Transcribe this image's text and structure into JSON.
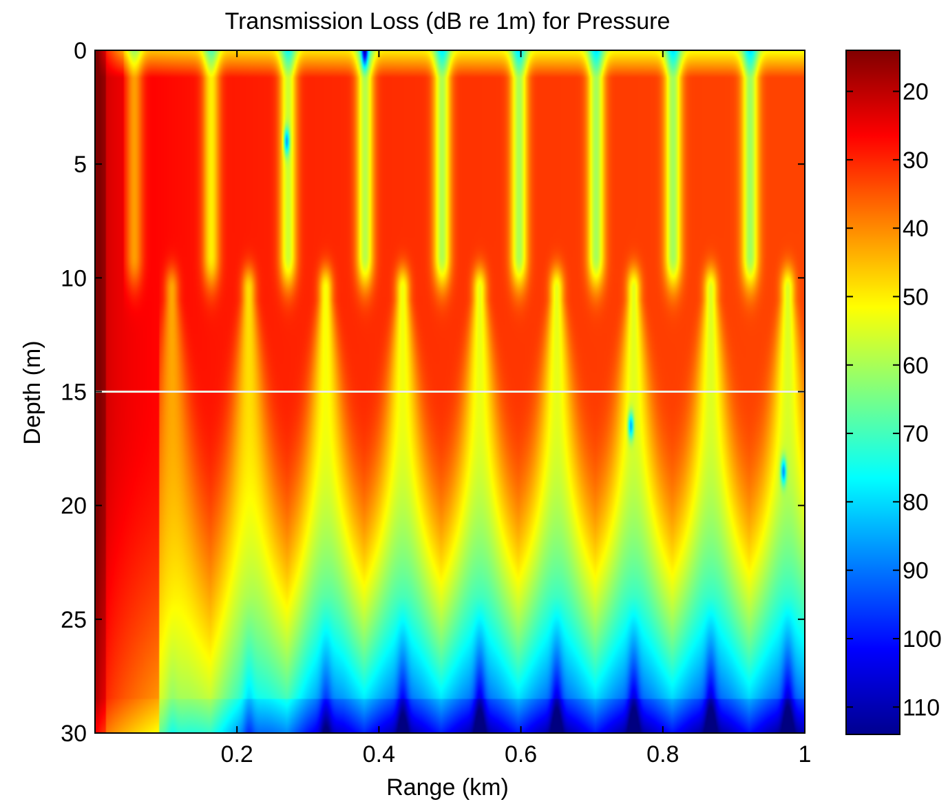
{
  "chart_data": {
    "type": "heatmap",
    "title": "Transmission Loss (dB re 1m) for Pressure",
    "xlabel": "Range (km)",
    "ylabel": "Depth (m)",
    "xlim": [
      0,
      1
    ],
    "ylim": [
      0,
      30
    ],
    "y_reversed": true,
    "x_ticks": [
      "0.2",
      "0.4",
      "0.6",
      "0.8",
      "1"
    ],
    "x_tick_values": [
      0.2,
      0.4,
      0.6,
      0.8,
      1.0
    ],
    "y_ticks": [
      "0",
      "5",
      "10",
      "15",
      "20",
      "25",
      "30"
    ],
    "y_tick_values": [
      0,
      5,
      10,
      15,
      20,
      25,
      30
    ],
    "colorbar": {
      "range": [
        14,
        114
      ],
      "ticks": [
        "20",
        "30",
        "40",
        "50",
        "60",
        "70",
        "80",
        "90",
        "100",
        "110"
      ],
      "tick_values": [
        20,
        30,
        40,
        50,
        60,
        70,
        80,
        90,
        100,
        110
      ],
      "colormap": "jet"
    },
    "reference_line": {
      "depth": 15,
      "color": "#f0f0e0"
    },
    "interference_model": {
      "mode_spacing_km": 0.1085,
      "first_upper_null_km": 0.055,
      "first_lower_null_km": 0.108,
      "upper_null_depth": 5.5,
      "lower_null_depth": 12.5,
      "deep_spot_depths": [
        4,
        16.5,
        18.5
      ]
    },
    "grid": false
  }
}
